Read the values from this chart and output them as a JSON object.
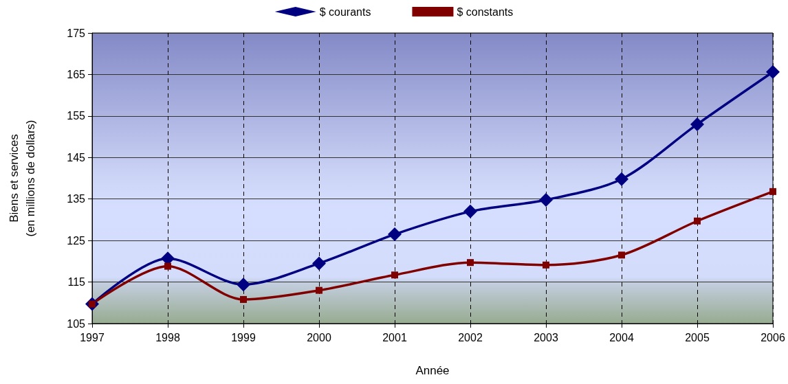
{
  "chart_data": {
    "type": "line",
    "xlabel": "Année",
    "ylabel": "Biens et services\n(en millions de dollars)",
    "x": [
      1997,
      1998,
      1999,
      2000,
      2001,
      2002,
      2003,
      2004,
      2005,
      2006
    ],
    "series": [
      {
        "name": "$ courants",
        "color": "#000080",
        "marker": "diamond",
        "values": [
          109.7,
          120.7,
          114.4,
          119.5,
          126.5,
          132.0,
          134.8,
          139.8,
          153.0,
          165.6
        ]
      },
      {
        "name": "$ constants",
        "color": "#800000",
        "marker": "square",
        "values": [
          109.7,
          118.8,
          110.8,
          113.0,
          116.7,
          119.7,
          119.1,
          121.5,
          129.7,
          136.8
        ]
      }
    ],
    "xlim": [
      1997,
      2006
    ],
    "xticks": [
      1997,
      1998,
      1999,
      2000,
      2001,
      2002,
      2003,
      2004,
      2005,
      2006
    ],
    "ylim": [
      105,
      175
    ],
    "yticks": [
      105,
      115,
      125,
      135,
      145,
      155,
      165,
      175
    ],
    "grid": true,
    "legend": "top",
    "line_style": "solid"
  }
}
